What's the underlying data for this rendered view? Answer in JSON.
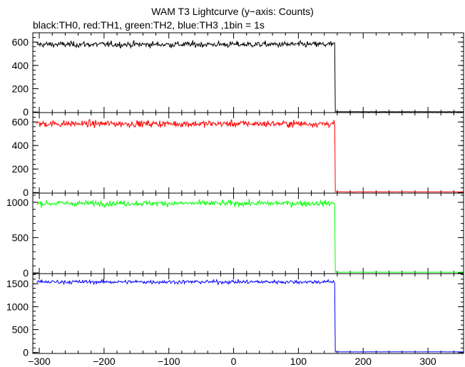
{
  "title": "WAM T3 Lightcurve (y−axis: Counts)",
  "subtitle": "black:TH0, red:TH1, green:TH2, blue:TH3 ,1bin = 1s",
  "chart_data": [
    {
      "type": "line",
      "series": [
        {
          "name": "TH0",
          "color": "#000000",
          "mean_before": 580,
          "noise": 18,
          "cutoff_x": 156,
          "drop_x": 157,
          "after_value": 2,
          "transition": [
            300
          ]
        }
      ],
      "xlim": [
        -310,
        355
      ],
      "ylim": [
        -5,
        680
      ],
      "yticks": [
        0,
        200,
        400,
        600
      ],
      "ytick_labels": [
        "0",
        "200",
        "400",
        "600"
      ],
      "xticks": [
        -300,
        -200,
        -100,
        0,
        100,
        200,
        300
      ]
    },
    {
      "type": "line",
      "series": [
        {
          "name": "TH1",
          "color": "#ff0000",
          "mean_before": 585,
          "noise": 20,
          "cutoff_x": 156,
          "drop_x": 157,
          "after_value": 6,
          "transition": [
            350
          ]
        }
      ],
      "xlim": [
        -310,
        355
      ],
      "ylim": [
        -5,
        680
      ],
      "yticks": [
        0,
        200,
        400,
        600
      ],
      "ytick_labels": [
        "0",
        "200",
        "400",
        "600"
      ],
      "xticks": [
        -300,
        -200,
        -100,
        0,
        100,
        200,
        300
      ]
    },
    {
      "type": "line",
      "series": [
        {
          "name": "TH2",
          "color": "#00ff00",
          "mean_before": 985,
          "noise": 28,
          "cutoff_x": 156,
          "drop_x": 157,
          "after_value": 10,
          "transition": [
            470
          ]
        }
      ],
      "xlim": [
        -310,
        355
      ],
      "ylim": [
        -10,
        1130
      ],
      "yticks": [
        0,
        500,
        1000
      ],
      "ytick_labels": [
        "0",
        "500",
        "1000"
      ],
      "xticks": [
        -300,
        -200,
        -100,
        0,
        100,
        200,
        300
      ]
    },
    {
      "type": "line",
      "series": [
        {
          "name": "TH3",
          "color": "#0000ff",
          "mean_before": 1540,
          "noise": 30,
          "cutoff_x": 156,
          "drop_x": 157,
          "after_value": 14,
          "transition": [
            760
          ]
        }
      ],
      "xlim": [
        -310,
        355
      ],
      "ylim": [
        -20,
        1720
      ],
      "yticks": [
        0,
        500,
        1000,
        1500
      ],
      "ytick_labels": [
        "0",
        "500",
        "1000",
        "1500"
      ],
      "xticks": [
        -300,
        -200,
        -100,
        0,
        100,
        200,
        300
      ],
      "xtick_labels": [
        "−300",
        "−200",
        "−100",
        "0",
        "100",
        "200",
        "300"
      ]
    }
  ]
}
